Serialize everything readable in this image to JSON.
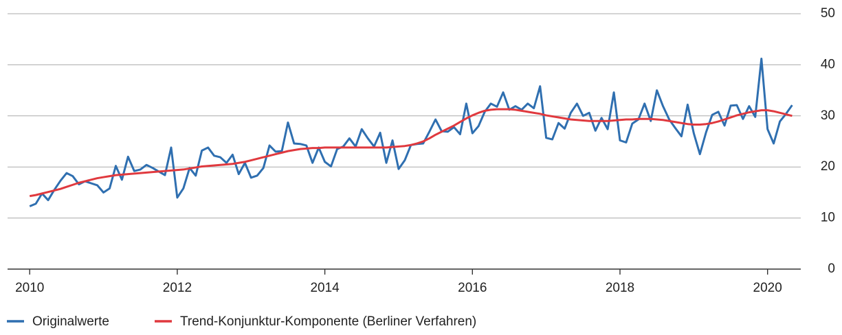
{
  "chart_data": {
    "type": "line",
    "x": [
      2010,
      2010.083,
      2010.167,
      2010.25,
      2010.333,
      2010.417,
      2010.5,
      2010.583,
      2010.667,
      2010.75,
      2010.833,
      2010.917,
      2011,
      2011.083,
      2011.167,
      2011.25,
      2011.333,
      2011.417,
      2011.5,
      2011.583,
      2011.667,
      2011.75,
      2011.833,
      2011.917,
      2012,
      2012.083,
      2012.167,
      2012.25,
      2012.333,
      2012.417,
      2012.5,
      2012.583,
      2012.667,
      2012.75,
      2012.833,
      2012.917,
      2013,
      2013.083,
      2013.167,
      2013.25,
      2013.333,
      2013.417,
      2013.5,
      2013.583,
      2013.667,
      2013.75,
      2013.833,
      2013.917,
      2014,
      2014.083,
      2014.167,
      2014.25,
      2014.333,
      2014.417,
      2014.5,
      2014.583,
      2014.667,
      2014.75,
      2014.833,
      2014.917,
      2015,
      2015.083,
      2015.167,
      2015.25,
      2015.333,
      2015.417,
      2015.5,
      2015.583,
      2015.667,
      2015.75,
      2015.833,
      2015.917,
      2016,
      2016.083,
      2016.167,
      2016.25,
      2016.333,
      2016.417,
      2016.5,
      2016.583,
      2016.667,
      2016.75,
      2016.833,
      2016.917,
      2017,
      2017.083,
      2017.167,
      2017.25,
      2017.333,
      2017.417,
      2017.5,
      2017.583,
      2017.667,
      2017.75,
      2017.833,
      2017.917,
      2018,
      2018.083,
      2018.167,
      2018.25,
      2018.333,
      2018.417,
      2018.5,
      2018.583,
      2018.667,
      2018.75,
      2018.833,
      2018.917,
      2019,
      2019.083,
      2019.167,
      2019.25,
      2019.333,
      2019.417,
      2019.5,
      2019.583,
      2019.667,
      2019.75,
      2019.833,
      2019.917,
      2020,
      2020.083,
      2020.167,
      2020.25,
      2020.333
    ],
    "series": [
      {
        "name": "Originalwerte",
        "color": "#2f6fb0",
        "values": [
          12.3,
          12.8,
          14.8,
          13.5,
          15.5,
          17.3,
          18.8,
          18.2,
          16.6,
          17.2,
          16.8,
          16.4,
          15.0,
          15.8,
          20.2,
          17.5,
          22.0,
          19.2,
          19.5,
          20.4,
          19.8,
          19.1,
          18.4,
          23.8,
          14.0,
          15.8,
          19.8,
          18.3,
          23.2,
          23.8,
          22.2,
          21.9,
          20.8,
          22.4,
          18.6,
          20.8,
          17.9,
          18.3,
          19.8,
          24.2,
          23.0,
          23.1,
          28.7,
          24.6,
          24.5,
          24.2,
          20.8,
          23.8,
          21.0,
          20.1,
          23.5,
          24.0,
          25.6,
          24.0,
          27.4,
          25.6,
          24.0,
          26.7,
          20.8,
          25.2,
          19.6,
          21.3,
          24.3,
          24.5,
          24.6,
          26.9,
          29.3,
          27.0,
          26.9,
          27.8,
          26.4,
          32.4,
          26.6,
          28.0,
          30.8,
          32.4,
          31.8,
          34.6,
          31.2,
          31.9,
          31.2,
          32.4,
          31.5,
          35.8,
          25.7,
          25.4,
          28.6,
          27.5,
          30.6,
          32.4,
          30.0,
          30.6,
          27.1,
          29.6,
          27.4,
          34.6,
          25.2,
          24.8,
          28.5,
          29.3,
          32.4,
          29.0,
          35.0,
          31.9,
          29.3,
          27.6,
          26.0,
          32.2,
          26.6,
          22.5,
          26.8,
          30.2,
          30.8,
          28.1,
          32.0,
          32.1,
          29.4,
          31.9,
          29.8,
          41.2,
          27.4,
          24.6,
          28.9,
          30.4,
          32.1
        ]
      },
      {
        "name": "Trend-Konjunktur-Komponente (Berliner Verfahren)",
        "color": "#e0393e",
        "values": [
          14.3,
          14.5,
          14.8,
          15.1,
          15.4,
          15.7,
          16.1,
          16.5,
          16.9,
          17.2,
          17.5,
          17.8,
          18.0,
          18.2,
          18.4,
          18.5,
          18.6,
          18.7,
          18.8,
          18.9,
          19.0,
          19.1,
          19.2,
          19.3,
          19.4,
          19.5,
          19.7,
          19.9,
          20.1,
          20.2,
          20.3,
          20.4,
          20.5,
          20.6,
          20.8,
          21.0,
          21.3,
          21.6,
          21.9,
          22.2,
          22.5,
          22.8,
          23.1,
          23.3,
          23.5,
          23.6,
          23.7,
          23.7,
          23.8,
          23.8,
          23.8,
          23.8,
          23.8,
          23.8,
          23.8,
          23.8,
          23.8,
          23.8,
          23.8,
          23.9,
          24.0,
          24.1,
          24.3,
          24.6,
          25.0,
          25.6,
          26.3,
          26.9,
          27.5,
          28.1,
          28.8,
          29.5,
          30.1,
          30.6,
          31.0,
          31.2,
          31.3,
          31.3,
          31.3,
          31.2,
          31.0,
          30.8,
          30.6,
          30.4,
          30.1,
          29.9,
          29.7,
          29.5,
          29.3,
          29.2,
          29.1,
          29.0,
          29.0,
          29.0,
          29.0,
          29.1,
          29.2,
          29.3,
          29.3,
          29.4,
          29.4,
          29.4,
          29.3,
          29.2,
          29.0,
          28.8,
          28.6,
          28.4,
          28.3,
          28.3,
          28.4,
          28.6,
          28.9,
          29.3,
          29.7,
          30.1,
          30.4,
          30.7,
          30.9,
          31.1,
          31.1,
          30.9,
          30.6,
          30.3,
          30.0
        ]
      }
    ],
    "xlim": [
      2009.7,
      2020.45
    ],
    "xticks": [
      2010,
      2012,
      2014,
      2016,
      2018,
      2020
    ],
    "ylim": [
      0,
      50
    ],
    "yticks": [
      0,
      10,
      20,
      30,
      40,
      50
    ],
    "grid": true
  }
}
